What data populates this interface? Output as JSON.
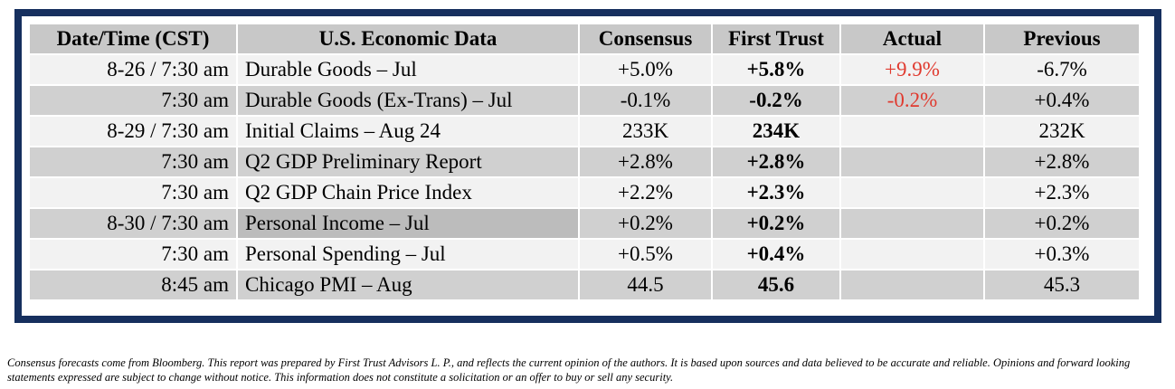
{
  "table": {
    "headers": {
      "date": "Date/Time (CST)",
      "description": "U.S. Economic Data",
      "consensus": "Consensus",
      "first_trust": "First Trust",
      "actual": "Actual",
      "previous": "Previous"
    },
    "rows": [
      {
        "date": "8-26 / 7:30 am",
        "description": "Durable Goods – Jul",
        "consensus": "+5.0%",
        "first_trust": "+5.8%",
        "actual": "+9.9%",
        "previous": "-6.7%"
      },
      {
        "date": "7:30 am",
        "description": "Durable Goods (Ex-Trans) – Jul",
        "consensus": "-0.1%",
        "first_trust": "-0.2%",
        "actual": "-0.2%",
        "previous": "+0.4%"
      },
      {
        "date": "8-29 / 7:30 am",
        "description": "Initial Claims – Aug 24",
        "consensus": "233K",
        "first_trust": "234K",
        "actual": "",
        "previous": "232K"
      },
      {
        "date": "7:30 am",
        "description": "Q2 GDP Preliminary Report",
        "consensus": "+2.8%",
        "first_trust": "+2.8%",
        "actual": "",
        "previous": "+2.8%"
      },
      {
        "date": "7:30 am",
        "description": "Q2 GDP Chain Price Index",
        "consensus": "+2.2%",
        "first_trust": "+2.3%",
        "actual": "",
        "previous": "+2.3%"
      },
      {
        "date": "8-30 / 7:30 am",
        "description": "Personal Income – Jul",
        "consensus": "+0.2%",
        "first_trust": "+0.2%",
        "actual": "",
        "previous": "+0.2%"
      },
      {
        "date": "7:30 am",
        "description": "Personal Spending – Jul",
        "consensus": "+0.5%",
        "first_trust": "+0.4%",
        "actual": "",
        "previous": "+0.3%"
      },
      {
        "date": "8:45 am",
        "description": "Chicago PMI – Aug",
        "consensus": "44.5",
        "first_trust": "45.6",
        "actual": "",
        "previous": "45.3"
      }
    ]
  },
  "colors": {
    "frame_border": "#162f5e",
    "header_bg": "#c8c8c8",
    "shaded_row_bg": "#d0d0d0",
    "plain_row_bg": "#f2f2f2",
    "actual_text": "#e03a2f"
  },
  "footnote": "Consensus forecasts come from Bloomberg.  This report was prepared by First Trust Advisors L. P., and reflects the current opinion of the authors.  It is based upon sources and data believed to be accurate and reliable.  Opinions and forward looking statements expressed are subject to change without notice.  This information does not constitute a solicitation or an offer to buy or sell any security."
}
